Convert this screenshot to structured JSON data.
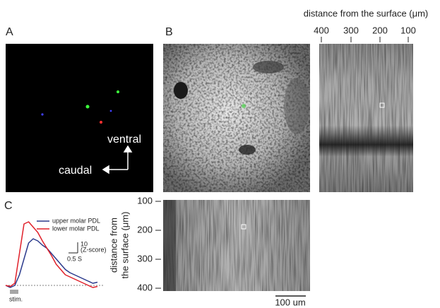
{
  "panel_labels": [
    "A",
    "B",
    "C"
  ],
  "panel_a": {
    "dorsal_axis": "ventral",
    "rostral_axis": "caudal"
  },
  "depth_axis_top": {
    "label": "distance from the surface (μm)",
    "ticks": [
      400,
      300,
      200,
      100
    ]
  },
  "depth_axis_left": {
    "label_lines": [
      "distance from",
      "the surface (μm)"
    ],
    "ticks": [
      100,
      200,
      300,
      400
    ]
  },
  "image_scale_bar": "100 um",
  "chart_data": {
    "type": "line",
    "x": [
      -0.5,
      -0.25,
      0,
      0.25,
      0.5,
      0.75,
      1.0,
      1.25,
      1.5,
      1.75,
      2.0,
      2.25,
      2.5,
      2.75,
      3.0,
      3.25,
      3.5,
      3.75,
      4.0,
      4.25,
      4.5
    ],
    "series": [
      {
        "name": "upper molar PDL",
        "color": "#2b3a8c",
        "values": [
          0,
          -2,
          0,
          10,
          25,
          40,
          44,
          42,
          38,
          35,
          30,
          25,
          20,
          15,
          12,
          10,
          8,
          6,
          4,
          2,
          3
        ]
      },
      {
        "name": "lower molar PDL",
        "color": "#e0202a",
        "values": [
          0,
          -1,
          2,
          30,
          58,
          60,
          55,
          50,
          42,
          35,
          28,
          20,
          15,
          10,
          8,
          6,
          4,
          2,
          0,
          -2,
          -1
        ]
      }
    ],
    "scale_bar_y": {
      "value": 10,
      "label": "10",
      "unit": "(Z-score)"
    },
    "scale_bar_x": {
      "value": 0.5,
      "label": "0.5 S"
    },
    "stimulus_label": "stim."
  }
}
